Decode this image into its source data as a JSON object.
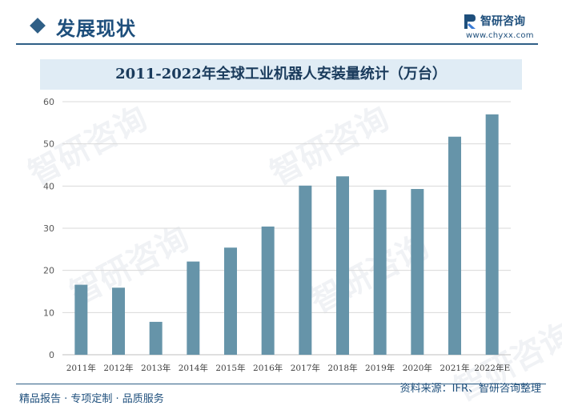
{
  "header": {
    "section_title": "发展现状",
    "logo_name": "智研咨询",
    "logo_url": "www.chyxx.com"
  },
  "watermark_text": "智研咨询",
  "colors": {
    "bar": "#6694a9",
    "accent": "#1e4f7c",
    "title_band": "#e0ecf5",
    "grid": "#d9d9d9"
  },
  "chart_data": {
    "type": "bar",
    "title": "2011-2022年全球工业机器人安装量统计（万台）",
    "categories": [
      "2011年",
      "2012年",
      "2013年",
      "2014年",
      "2015年",
      "2016年",
      "2017年",
      "2018年",
      "2019年",
      "2020年",
      "2021年",
      "2022年E"
    ],
    "values": [
      16.6,
      15.9,
      7.8,
      22.1,
      25.4,
      30.4,
      40.1,
      42.3,
      39.1,
      39.3,
      51.7,
      57.0
    ],
    "ylim": [
      0,
      60
    ],
    "yticks": [
      0,
      10,
      20,
      30,
      40,
      50,
      60
    ],
    "grid": true,
    "legend": "none"
  },
  "footer": {
    "left": "精品报告 · 专项定制 · 品质服务",
    "source": "资料来源：IFR、智研咨询整理"
  }
}
